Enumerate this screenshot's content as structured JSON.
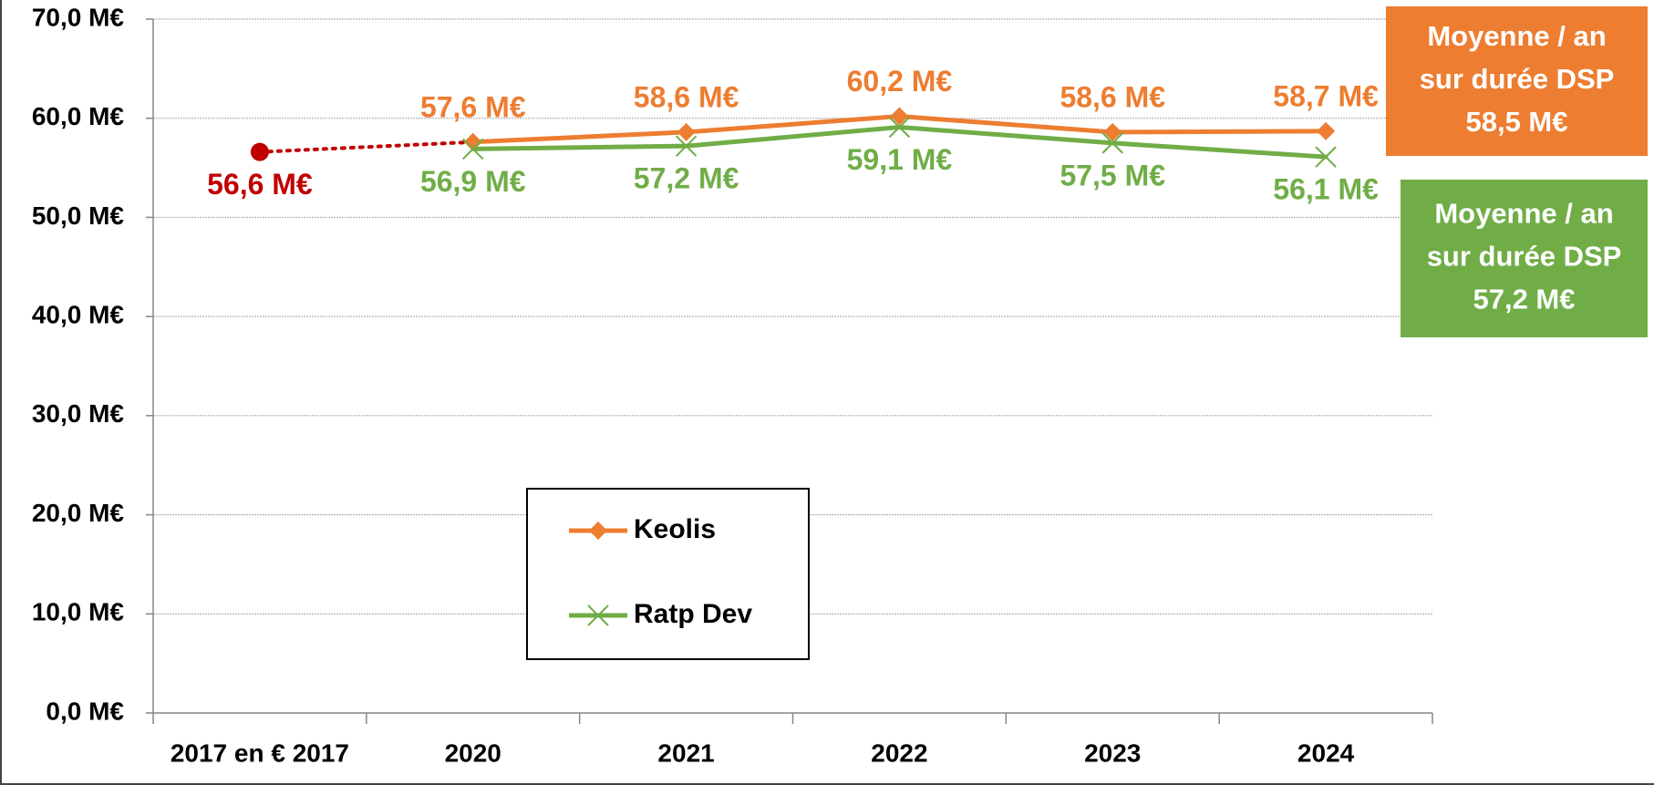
{
  "chart_data": {
    "type": "line",
    "categories": [
      "2017 en € 2017",
      "2020",
      "2021",
      "2022",
      "2023",
      "2024"
    ],
    "series": [
      {
        "name": "Keolis",
        "color": "#ed7d31",
        "marker": "diamond",
        "label_side": "above",
        "values": [
          null,
          57.6,
          58.6,
          60.2,
          58.6,
          58.7
        ],
        "value_labels": [
          null,
          "57,6 M€",
          "58,6 M€",
          "60,2 M€",
          "58,6 M€",
          "58,7 M€"
        ]
      },
      {
        "name": "Ratp Dev",
        "color": "#70ad47",
        "marker": "x",
        "label_side": "below",
        "values": [
          null,
          56.9,
          57.2,
          59.1,
          57.5,
          56.1
        ],
        "value_labels": [
          null,
          "56,9 M€",
          "57,2 M€",
          "59,1 M€",
          "57,5 M€",
          "56,1 M€"
        ]
      },
      {
        "color": "#c00000",
        "marker": "circle",
        "dashed": true,
        "label_side": "below",
        "legend": false,
        "values": [
          56.6,
          57.6,
          null,
          null,
          null,
          null
        ],
        "value_labels": [
          "56,6 M€",
          null,
          null,
          null,
          null,
          null
        ]
      }
    ],
    "ylim": [
      0,
      70
    ],
    "yticks": [
      {
        "value": 0,
        "label": "0,0 M€"
      },
      {
        "value": 10,
        "label": "10,0 M€"
      },
      {
        "value": 20,
        "label": "20,0 M€"
      },
      {
        "value": 30,
        "label": "30,0 M€"
      },
      {
        "value": 40,
        "label": "40,0 M€"
      },
      {
        "value": 50,
        "label": "50,0 M€"
      },
      {
        "value": 60,
        "label": "60,0 M€"
      },
      {
        "value": 70,
        "label": "70,0 M€"
      }
    ],
    "grid": true,
    "annotations": [
      {
        "lines": [
          "Moyenne / an",
          "sur durée DSP",
          "58,5 M€"
        ],
        "color": "#ed7d31"
      },
      {
        "lines": [
          "Moyenne / an",
          "sur durée DSP",
          "57,2 M€"
        ],
        "color": "#70ad47"
      }
    ]
  }
}
